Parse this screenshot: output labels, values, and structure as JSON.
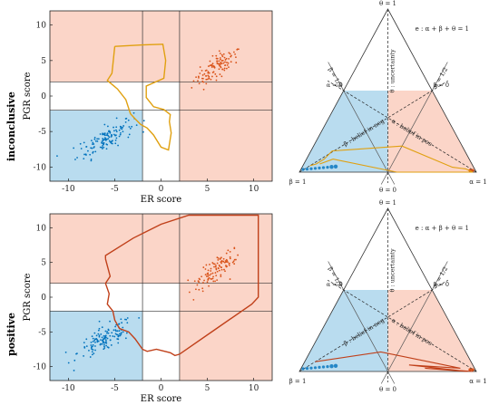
{
  "rows": [
    {
      "label": "inconclusive",
      "scatter": {
        "xlabel": "ER score",
        "ylabel": "PGR score",
        "xticks": [
          -10,
          -5,
          0,
          5,
          10
        ],
        "yticks": [
          10,
          5,
          0,
          -5,
          -10
        ],
        "xlim": [
          -12,
          12
        ],
        "ylim": [
          -12,
          12
        ],
        "threshold_x": [
          -2,
          2
        ],
        "threshold_y": [
          -2,
          2
        ],
        "pos_cluster": {
          "cx": 6,
          "cy": 4,
          "color": "#d95319"
        },
        "neg_cluster": {
          "cx": -6,
          "cy": -6,
          "color": "#0072bd"
        },
        "trajectory_color": "#e0a010",
        "trajectory": [
          [
            -5,
            7
          ],
          [
            -2,
            7.2
          ],
          [
            0.2,
            7.3
          ],
          [
            0.5,
            5
          ],
          [
            0.3,
            2.5
          ],
          [
            -1.6,
            1.4
          ],
          [
            -1.6,
            -0.2
          ],
          [
            -0.8,
            -1.5
          ],
          [
            0.3,
            -1.9
          ],
          [
            1,
            -2.6
          ],
          [
            0.9,
            -3.6
          ],
          [
            1.1,
            -5.2
          ],
          [
            0.8,
            -7.6
          ],
          [
            0,
            -7.2
          ],
          [
            -0.8,
            -5.5
          ],
          [
            -1.5,
            -4.5
          ],
          [
            -2.2,
            -4
          ],
          [
            -2.8,
            -3.2
          ],
          [
            -3.3,
            -2.5
          ],
          [
            -3.8,
            -0.5
          ],
          [
            -4.7,
            1
          ],
          [
            -5.8,
            2.2
          ],
          [
            -5.3,
            3.2
          ],
          [
            -5,
            7
          ]
        ]
      },
      "simplex": {
        "top_label": "θ = 1",
        "left_label": "β = 1",
        "right_label": "α = 1",
        "bottom_label": "θ = 0",
        "equation": "e : α + β + θ = 1",
        "alpha_half": "α = 1/2",
        "beta_half": "β = 1/2",
        "alpha_zero": "α = 0",
        "beta_zero": "β = 0",
        "theta_axis": "θ : uncertainty",
        "beta_axis": "β : belief in neg",
        "alpha_axis": "α : belief in pos",
        "trajectory_color": "#e0a010",
        "trajectory": [
          [
            0.04,
            0.04,
            0.92
          ],
          [
            0.07,
            0.05,
            0.88
          ],
          [
            0.1,
            0.08,
            0.82
          ],
          [
            0.12,
            0.13,
            0.75
          ],
          [
            0.5,
            0.16,
            0.34
          ],
          [
            0.85,
            0.03,
            0.12
          ],
          [
            0.93,
            0.02,
            0.05
          ],
          [
            0.98,
            0.0,
            0.02
          ],
          [
            0.55,
            0.0,
            0.45
          ],
          [
            0.15,
            0.08,
            0.77
          ],
          [
            0.09,
            0.05,
            0.86
          ]
        ],
        "neg_dots": [
          [
            0.02,
            0.0,
            0.98
          ],
          [
            0.04,
            0.01,
            0.95
          ],
          [
            0.06,
            0.02,
            0.92
          ],
          [
            0.08,
            0.03,
            0.89
          ],
          [
            0.1,
            0.04,
            0.86
          ],
          [
            0.12,
            0.05,
            0.83
          ],
          [
            0.14,
            0.06,
            0.8
          ],
          [
            0.16,
            0.07,
            0.77
          ],
          [
            0.18,
            0.08,
            0.74
          ]
        ],
        "pos_dots": [
          [
            0.97,
            0.0,
            0.03
          ],
          [
            0.95,
            0.01,
            0.04
          ]
        ]
      }
    },
    {
      "label": "positive",
      "scatter": {
        "xlabel": "ER score",
        "ylabel": "PGR score",
        "xticks": [
          -10,
          -5,
          0,
          5,
          10
        ],
        "yticks": [
          10,
          5,
          0,
          -5,
          -10
        ],
        "xlim": [
          -12,
          12
        ],
        "ylim": [
          -12,
          12
        ],
        "threshold_x": [
          -2,
          2
        ],
        "threshold_y": [
          -2,
          2
        ],
        "pos_cluster": {
          "cx": 6,
          "cy": 4,
          "color": "#d95319"
        },
        "neg_cluster": {
          "cx": -6,
          "cy": -6,
          "color": "#0072bd"
        },
        "trajectory_color": "#c0401a",
        "trajectory": [
          [
            -6,
            5.5
          ],
          [
            -6,
            6
          ],
          [
            -3,
            8.5
          ],
          [
            0,
            10.5
          ],
          [
            3,
            11.8
          ],
          [
            10.5,
            11.8
          ],
          [
            10.5,
            6
          ],
          [
            10.5,
            0
          ],
          [
            9.8,
            -1
          ],
          [
            6,
            -4.5
          ],
          [
            2,
            -8.2
          ],
          [
            1.5,
            -8.4
          ],
          [
            1,
            -8
          ],
          [
            -0.5,
            -7.5
          ],
          [
            -1.5,
            -7.8
          ],
          [
            -2,
            -7.5
          ],
          [
            -2.8,
            -6
          ],
          [
            -3.5,
            -5
          ],
          [
            -4.5,
            -4.5
          ],
          [
            -5,
            -3.3
          ],
          [
            -5.2,
            -2
          ],
          [
            -5.8,
            -1
          ],
          [
            -5.6,
            0.5
          ],
          [
            -6,
            2
          ],
          [
            -5.5,
            3
          ],
          [
            -6,
            5.5
          ]
        ]
      },
      "simplex": {
        "top_label": "θ = 1",
        "left_label": "β = 1",
        "right_label": "α = 1",
        "bottom_label": "θ = 0",
        "equation": "e : α + β + θ = 1",
        "alpha_half": "α = 1/2",
        "beta_half": "β = 1/2",
        "alpha_zero": "α = 0",
        "beta_zero": "β = 0",
        "theta_axis": "θ : uncertainty",
        "beta_axis": "β : belief in neg",
        "alpha_axis": "α : belief in pos",
        "trajectory_color": "#c0401a",
        "trajectory": [
          [
            0.06,
            0.06,
            0.88
          ],
          [
            0.4,
            0.12,
            0.48
          ],
          [
            0.7,
            0.06,
            0.24
          ],
          [
            0.9,
            0.02,
            0.08
          ],
          [
            0.6,
            0.04,
            0.36
          ],
          [
            0.95,
            0.0,
            0.05
          ],
          [
            0.7,
            0.02,
            0.28
          ],
          [
            0.98,
            0.0,
            0.02
          ]
        ],
        "neg_dots": [
          [
            0.02,
            0.0,
            0.98
          ],
          [
            0.04,
            0.01,
            0.95
          ],
          [
            0.06,
            0.02,
            0.92
          ],
          [
            0.08,
            0.03,
            0.89
          ],
          [
            0.1,
            0.04,
            0.86
          ],
          [
            0.12,
            0.05,
            0.83
          ],
          [
            0.14,
            0.06,
            0.8
          ],
          [
            0.16,
            0.07,
            0.77
          ],
          [
            0.18,
            0.08,
            0.74
          ]
        ],
        "pos_dots": [
          [
            0.97,
            0.0,
            0.03
          ],
          [
            0.95,
            0.01,
            0.04
          ]
        ]
      }
    }
  ],
  "colors": {
    "pos_region": "#fbd5c8",
    "neg_region": "#b9dcef",
    "grid_line": "#333333"
  }
}
